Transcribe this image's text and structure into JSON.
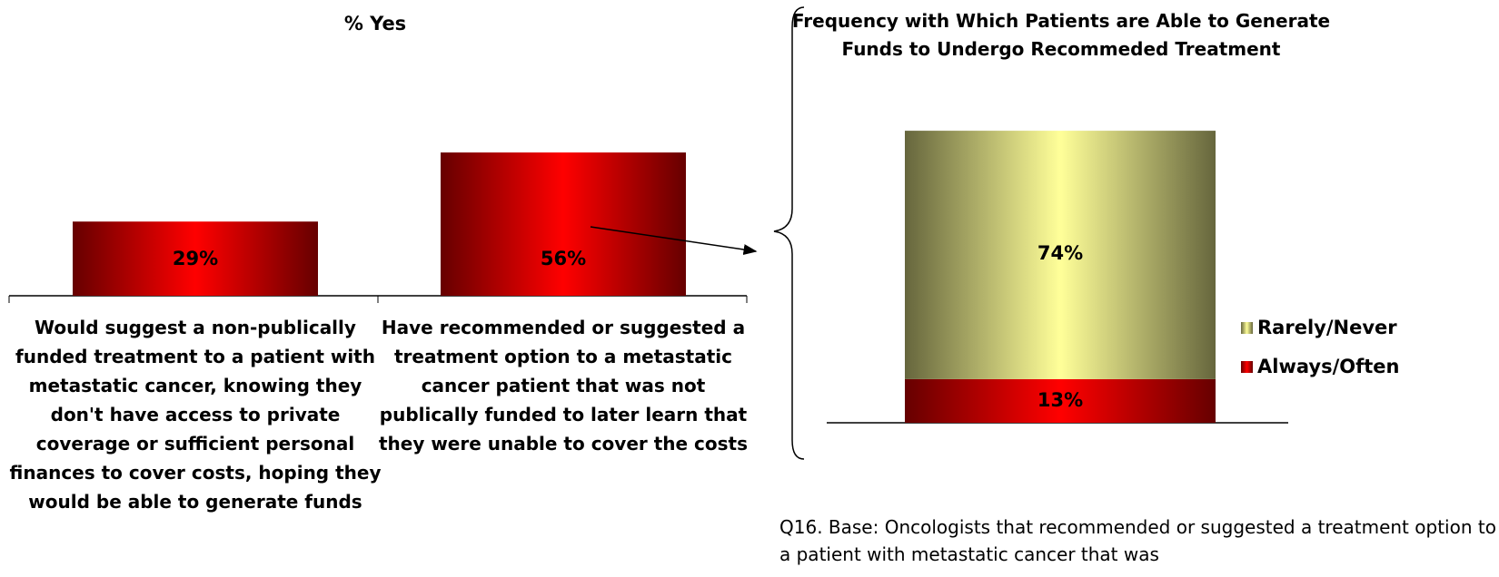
{
  "chart_data": [
    {
      "type": "bar",
      "title": "% Yes",
      "categories": [
        "Would suggest a non-publically funded treatment to a patient with metastatic cancer, knowing they don't have access to private coverage or sufficient personal finances to cover costs, hoping they would be able to generate funds",
        "Have recommended or suggested a treatment option to a metastatic cancer patient that was not publically funded to later learn that they were unable to cover the costs"
      ],
      "values": [
        29,
        56
      ],
      "value_labels": [
        "29%",
        "56%"
      ],
      "color": "#ff0000"
    },
    {
      "type": "stacked_bar",
      "title": "Frequency with Which Patients are Able to Generate Funds to Undergo Recommeded Treatment",
      "series": [
        {
          "name": "Always/Often",
          "color": "#ff0000",
          "values": [
            13
          ],
          "value_labels": [
            "13%"
          ]
        },
        {
          "name": "Rarely/Never",
          "color": "#ffff99",
          "values": [
            74
          ],
          "value_labels": [
            "74%"
          ]
        }
      ],
      "legend": "right"
    }
  ],
  "footnote": "Q16. Base: Oncologists that recommended or suggested a treatment option to a patient with metastatic cancer that was"
}
